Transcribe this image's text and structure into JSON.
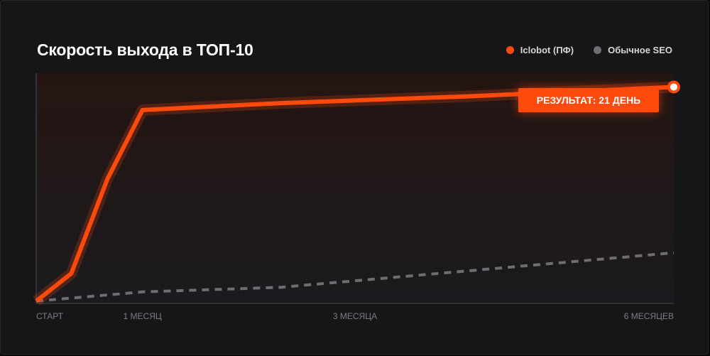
{
  "title": "Скорость выхода в ТОП-10",
  "legend": [
    {
      "label": "Iclobot (ПФ)",
      "color": "#ff4a0d"
    },
    {
      "label": "Обычное SEO",
      "color": "#6d6d72"
    }
  ],
  "badge": "РЕЗУЛЬТАТ: 21 ДЕНЬ",
  "chart_data": {
    "type": "line",
    "title": "Скорость выхода в ТОП-10",
    "x_ticks": [
      {
        "label": "СТАРТ",
        "x": 0
      },
      {
        "label": "1 МЕСЯЦ",
        "x": 1
      },
      {
        "label": "3 МЕСЯЦА",
        "x": 3
      },
      {
        "label": "6 МЕСЯЦЕВ",
        "x": 6
      }
    ],
    "xlim": [
      0,
      6
    ],
    "ylim": [
      0,
      100
    ],
    "grid": false,
    "legend_position": "top-right",
    "series": [
      {
        "name": "Iclobot (ПФ)",
        "color": "#ff4a0d",
        "style": "solid",
        "points": [
          [
            0,
            1
          ],
          [
            0.33,
            13
          ],
          [
            0.67,
            54
          ],
          [
            1,
            84
          ],
          [
            2.3,
            87
          ],
          [
            4.1,
            90
          ],
          [
            6,
            94
          ]
        ]
      },
      {
        "name": "Обычное SEO",
        "color": "#6d6d72",
        "style": "dashed",
        "points": [
          [
            0,
            1
          ],
          [
            1,
            5
          ],
          [
            2.3,
            7
          ],
          [
            6,
            22
          ]
        ]
      }
    ],
    "annotation": {
      "text": "РЕЗУЛЬТАТ: 21 ДЕНЬ",
      "series": "Iclobot (ПФ)",
      "x": 6,
      "y": 94
    }
  }
}
